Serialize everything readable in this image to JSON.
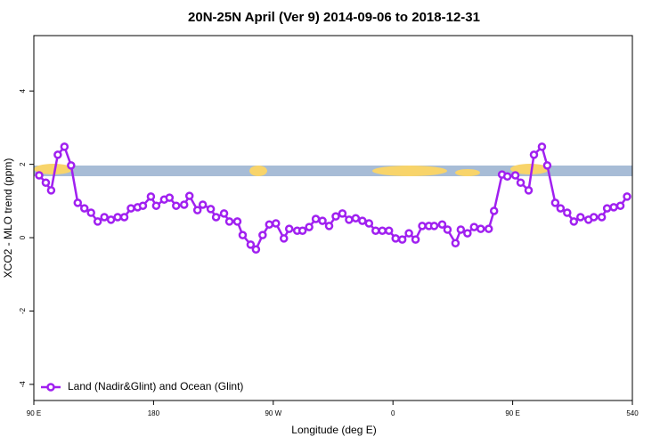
{
  "chart_data": {
    "type": "line",
    "title": "20N-25N April (Ver 9)   2014-09-06 to 2018-12-31",
    "x_label": "Longitude (deg E)",
    "y_label": "XCO2 - MLO trend (ppm)",
    "xlim": [
      90,
      540
    ],
    "ylim": [
      -4.44,
      5.51
    ],
    "xticks": [
      {
        "value": 90,
        "label": "90 E"
      },
      180,
      {
        "value": 270,
        "label": "90 W"
      },
      {
        "value": 360,
        "label": "0"
      },
      {
        "value": 450,
        "label": "90 E"
      },
      540
    ],
    "yticks": [
      -4,
      -2,
      0,
      2,
      4
    ],
    "legend": "bottom-left",
    "x": [
      94,
      99,
      103,
      108,
      113,
      118,
      123,
      128,
      133,
      138,
      143,
      148,
      153,
      158,
      163,
      168,
      172,
      178,
      182,
      188,
      192,
      197,
      203,
      207,
      213,
      217,
      223,
      227,
      233,
      237,
      243,
      247,
      253,
      257,
      262,
      267,
      272,
      278,
      282,
      288,
      292,
      297,
      302,
      307,
      312,
      317,
      322,
      327,
      332,
      337,
      342,
      347,
      352,
      357,
      362,
      367,
      372,
      377,
      382,
      387,
      391,
      397,
      401,
      407,
      411,
      416,
      421,
      426,
      432,
      436,
      442,
      446,
      452,
      456,
      462,
      466,
      472,
      476,
      482,
      486,
      491,
      496,
      501,
      507,
      511,
      517,
      521,
      526,
      531,
      536
    ],
    "series": [
      {
        "name": "Land (Nadir&Glint) and Ocean (Glint)",
        "color": "#a020f0",
        "values": [
          1.7,
          1.5,
          1.29,
          2.26,
          2.48,
          1.97,
          0.95,
          0.8,
          0.68,
          0.44,
          0.56,
          0.49,
          0.56,
          0.56,
          0.8,
          0.83,
          0.87,
          1.12,
          0.87,
          1.04,
          1.09,
          0.87,
          0.9,
          1.14,
          0.75,
          0.9,
          0.78,
          0.56,
          0.66,
          0.44,
          0.44,
          0.07,
          -0.19,
          -0.32,
          0.07,
          0.36,
          0.39,
          -0.02,
          0.24,
          0.19,
          0.19,
          0.29,
          0.51,
          0.46,
          0.32,
          0.58,
          0.66,
          0.49,
          0.53,
          0.46,
          0.39,
          0.19,
          0.19,
          0.19,
          -0.02,
          -0.05,
          0.12,
          -0.05,
          0.32,
          0.32,
          0.32,
          0.36,
          0.22,
          -0.15,
          0.22,
          0.12,
          0.29,
          0.24,
          0.24,
          0.73,
          1.72,
          1.67,
          1.7,
          1.5,
          1.29,
          2.26,
          2.48,
          1.97,
          0.95,
          0.8,
          0.68,
          0.44,
          0.56,
          0.49,
          0.56,
          0.56,
          0.8,
          0.83,
          0.87,
          1.12
        ]
      }
    ]
  }
}
